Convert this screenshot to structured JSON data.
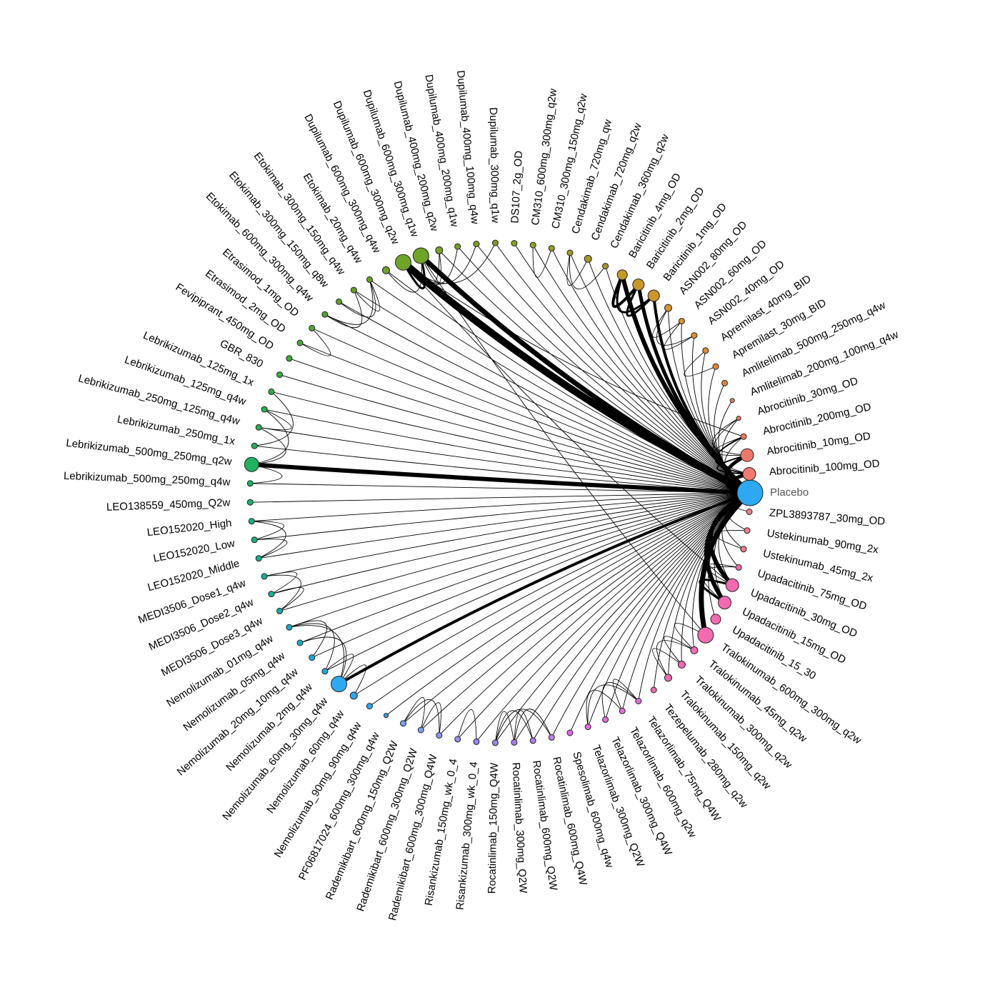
{
  "chart_data": {
    "type": "network",
    "title": "",
    "center": "Placebo",
    "nodes": [
      {
        "name": "Placebo",
        "size": 18,
        "color": "#2ea8f0"
      },
      {
        "name": "ZPL3893787_30mg_OD",
        "size": 4,
        "color": "#f07c8a"
      },
      {
        "name": "Ustekinumab_90mg_2x",
        "size": 4,
        "color": "#f07c8a"
      },
      {
        "name": "Ustekinumab_45mg_2x",
        "size": 4,
        "color": "#f07c8a"
      },
      {
        "name": "Upadacitinib_75mg_OD",
        "size": 4,
        "color": "#f26ab0"
      },
      {
        "name": "Upadacitinib_30mg_OD",
        "size": 9,
        "color": "#f26ab0"
      },
      {
        "name": "Upadacitinib_15mg_OD",
        "size": 9,
        "color": "#f26ab0"
      },
      {
        "name": "Upadacitinib_15_30",
        "size": 7,
        "color": "#f26ab0"
      },
      {
        "name": "Tralokinumab_600mg_300mg_q2w",
        "size": 11,
        "color": "#f26ab0"
      },
      {
        "name": "Tralokinumab_45mg_q2w",
        "size": 5,
        "color": "#f26ab0"
      },
      {
        "name": "Tralokinumab_300mg_q2w",
        "size": 5,
        "color": "#f26ab0"
      },
      {
        "name": "Tralokinumab_150mg_q2w",
        "size": 5,
        "color": "#f26ab0"
      },
      {
        "name": "Tezepelumab_280mg_q2w",
        "size": 4,
        "color": "#f26ab0"
      },
      {
        "name": "Telazorlimab_75mg_Q4W",
        "size": 4,
        "color": "#e66bd8"
      },
      {
        "name": "Telazorlimab_600mg_q2w",
        "size": 4,
        "color": "#e66bd8"
      },
      {
        "name": "Telazorlimab_300mg_Q4W",
        "size": 4,
        "color": "#e66bd8"
      },
      {
        "name": "Telazorlimab_300mg_Q2W",
        "size": 4,
        "color": "#e66bd8"
      },
      {
        "name": "Spesolimab_600mg_q4w",
        "size": 4,
        "color": "#d86ae8"
      },
      {
        "name": "Rocatinlimab_600mg_Q4W",
        "size": 4,
        "color": "#c37be8"
      },
      {
        "name": "Rocatinlimab_600mg_Q2W",
        "size": 4,
        "color": "#b17ce8"
      },
      {
        "name": "Rocatinlimab_300mg_Q2W",
        "size": 4,
        "color": "#a57ee8"
      },
      {
        "name": "Rocatinlimab_150mg_Q4W",
        "size": 4,
        "color": "#9e84ea"
      },
      {
        "name": "Risankizumab_300mg_wk_0_4",
        "size": 4,
        "color": "#9a88ea"
      },
      {
        "name": "Risankizumab_150mg_wk_0_4",
        "size": 4,
        "color": "#9591ec"
      },
      {
        "name": "Rademikibart_600mg_300mg_Q4W",
        "size": 4,
        "color": "#8a96ee"
      },
      {
        "name": "Rademikibart_600mg_300mg_Q2W",
        "size": 4,
        "color": "#7f9df0"
      },
      {
        "name": "Rademikibart_600mg_150mg_Q2W",
        "size": 4,
        "color": "#74a4f0"
      },
      {
        "name": "PF06817024_600mg_300mg_q4w",
        "size": 3,
        "color": "#3aa0e8"
      },
      {
        "name": "Nemolizumab_90mg_90mg_q4w",
        "size": 4,
        "color": "#2ea8f0"
      },
      {
        "name": "Nemolizumab_60mg_q4w",
        "size": 5,
        "color": "#2ea8f0"
      },
      {
        "name": "Nemolizumab_60mg_30mg_q4w",
        "size": 11,
        "color": "#2ea8f0"
      },
      {
        "name": "Nemolizumab_2mg_q4w",
        "size": 4,
        "color": "#22a9dc"
      },
      {
        "name": "Nemolizumab_20mg_10mg_q4w",
        "size": 4,
        "color": "#1eabd0"
      },
      {
        "name": "Nemolizumab_05mg_q4w",
        "size": 4,
        "color": "#1bacc4"
      },
      {
        "name": "Nemolizumab_01mg_q4w",
        "size": 4,
        "color": "#19adb8"
      },
      {
        "name": "MEDI3506_Dose3_q4w",
        "size": 4,
        "color": "#17aeac"
      },
      {
        "name": "MEDI3506_Dose2_q4w",
        "size": 4,
        "color": "#16afa0"
      },
      {
        "name": "MEDI3506_Dose1_q4w",
        "size": 4,
        "color": "#16b096"
      },
      {
        "name": "LEO152020_Middle",
        "size": 4,
        "color": "#17b08c"
      },
      {
        "name": "LEO152020_Low",
        "size": 4,
        "color": "#18b182"
      },
      {
        "name": "LEO152020_High",
        "size": 4,
        "color": "#1ab278"
      },
      {
        "name": "LEO138559_450mg_Q2w",
        "size": 4,
        "color": "#1cb270"
      },
      {
        "name": "Lebrikizumab_500mg_250mg_q4w",
        "size": 4,
        "color": "#1eb268"
      },
      {
        "name": "Lebrikizumab_500mg_250mg_q2w",
        "size": 10,
        "color": "#20b262"
      },
      {
        "name": "Lebrikizumab_250mg_1x",
        "size": 4,
        "color": "#22b25c"
      },
      {
        "name": "Lebrikizumab_250mg_125mg_q4w",
        "size": 4,
        "color": "#26b156"
      },
      {
        "name": "Lebrikizumab_125mg_q4w",
        "size": 4,
        "color": "#2ab050"
      },
      {
        "name": "Lebrikizumab_125mg_1x",
        "size": 4,
        "color": "#30ae48"
      },
      {
        "name": "GBR_830",
        "size": 4,
        "color": "#36ac42"
      },
      {
        "name": "Fevipiprant_450mg_OD",
        "size": 4,
        "color": "#3eaa3c"
      },
      {
        "name": "Etrasimod_2mg_OD",
        "size": 4,
        "color": "#46a838"
      },
      {
        "name": "Etrasimod_1mg_OD",
        "size": 4,
        "color": "#4ea634"
      },
      {
        "name": "Etokimab_600mg_300mg_q4w",
        "size": 4,
        "color": "#56a430"
      },
      {
        "name": "Etokimab_300mg_150mg_q8w",
        "size": 4,
        "color": "#5ea22c"
      },
      {
        "name": "Etokimab_300mg_150mg_q4w",
        "size": 4,
        "color": "#64a02a"
      },
      {
        "name": "Etokimab_20mg_q4w",
        "size": 4,
        "color": "#6a9e28"
      },
      {
        "name": "Dupilumab_600mg_300mg_q4w",
        "size": 5,
        "color": "#6fa028"
      },
      {
        "name": "Dupilumab_600mg_300mg_q2w",
        "size": 11,
        "color": "#6ea428"
      },
      {
        "name": "Dupilumab_600mg_300mg_q1w",
        "size": 11,
        "color": "#6ea428"
      },
      {
        "name": "Dupilumab_400mg_200mg_q2w",
        "size": 5,
        "color": "#72a228"
      },
      {
        "name": "Dupilumab_400mg_200mg_q1w",
        "size": 4,
        "color": "#76a028"
      },
      {
        "name": "Dupilumab_400mg_100mg_q4w",
        "size": 4,
        "color": "#7a9e28"
      },
      {
        "name": "Dupilumab_300mg_q1w",
        "size": 4,
        "color": "#7e9c28"
      },
      {
        "name": "DS107_2g_OD",
        "size": 4,
        "color": "#86a028"
      },
      {
        "name": "CM310_600mg_300mg_q2w",
        "size": 4,
        "color": "#8e9e28"
      },
      {
        "name": "CM310_300mg_150mg_q2w",
        "size": 4,
        "color": "#969c28"
      },
      {
        "name": "Cendakimab_720mg_qw",
        "size": 4,
        "color": "#9e9a28"
      },
      {
        "name": "Cendakimab_720mg_q2w",
        "size": 5,
        "color": "#a49828"
      },
      {
        "name": "Cendakimab_360mg_q2w",
        "size": 4,
        "color": "#aa9628"
      },
      {
        "name": "Baricitinib_4mg_OD",
        "size": 7,
        "color": "#c49a28"
      },
      {
        "name": "Baricitinib_2mg_OD",
        "size": 8,
        "color": "#c8982a"
      },
      {
        "name": "Baricitinib_1mg_OD",
        "size": 8,
        "color": "#cc962c"
      },
      {
        "name": "ASN002_80mg_OD",
        "size": 5,
        "color": "#d2942e"
      },
      {
        "name": "ASN002_60mg_OD",
        "size": 4,
        "color": "#d69230"
      },
      {
        "name": "ASN002_40mg_OD",
        "size": 4,
        "color": "#da9034"
      },
      {
        "name": "Apremilast_40mg_BID",
        "size": 4,
        "color": "#de8c3a"
      },
      {
        "name": "Apremilast_30mg_BID",
        "size": 4,
        "color": "#e2883e"
      },
      {
        "name": "Amlitelimab_500mg_250mg_q4w",
        "size": 4,
        "color": "#e88244"
      },
      {
        "name": "Amlitelimab_200mg_100mg_q4w",
        "size": 3,
        "color": "#ec7e4c"
      },
      {
        "name": "Abrocitinib_30mg_OD",
        "size": 3,
        "color": "#ee7a56"
      },
      {
        "name": "Abrocitinib_200mg_OD",
        "size": 4,
        "color": "#f07860"
      },
      {
        "name": "Abrocitinib_10mg_OD",
        "size": 9,
        "color": "#f07868"
      },
      {
        "name": "Abrocitinib_100mg_OD",
        "size": 9,
        "color": "#f07a72"
      }
    ],
    "edges": [
      {
        "a": "Placebo",
        "b": "Dupilumab_600mg_300mg_q2w",
        "w": 10
      },
      {
        "a": "Placebo",
        "b": "Dupilumab_600mg_300mg_q1w",
        "w": 7
      },
      {
        "a": "Placebo",
        "b": "Lebrikizumab_500mg_250mg_q2w",
        "w": 6
      },
      {
        "a": "Placebo",
        "b": "Baricitinib_4mg_OD",
        "w": 6
      },
      {
        "a": "Placebo",
        "b": "Baricitinib_2mg_OD",
        "w": 5
      },
      {
        "a": "Placebo",
        "b": "Baricitinib_1mg_OD",
        "w": 4
      },
      {
        "a": "Placebo",
        "b": "Tralokinumab_600mg_300mg_q2w",
        "w": 7
      },
      {
        "a": "Placebo",
        "b": "Upadacitinib_30mg_OD",
        "w": 6
      },
      {
        "a": "Placebo",
        "b": "Upadacitinib_15mg_OD",
        "w": 6
      },
      {
        "a": "Placebo",
        "b": "Abrocitinib_10mg_OD",
        "w": 5
      },
      {
        "a": "Placebo",
        "b": "Abrocitinib_100mg_OD",
        "w": 5
      },
      {
        "a": "Placebo",
        "b": "Nemolizumab_60mg_30mg_q4w",
        "w": 4
      },
      {
        "a": "Dupilumab_600mg_300mg_q2w",
        "b": "Dupilumab_600mg_300mg_q1w",
        "w": 3
      },
      {
        "a": "Baricitinib_4mg_OD",
        "b": "Baricitinib_2mg_OD",
        "w": 4
      },
      {
        "a": "Baricitinib_2mg_OD",
        "b": "Baricitinib_1mg_OD",
        "w": 3
      },
      {
        "a": "Baricitinib_4mg_OD",
        "b": "Baricitinib_1mg_OD",
        "w": 3
      },
      {
        "a": "Upadacitinib_30mg_OD",
        "b": "Upadacitinib_15mg_OD",
        "w": 3
      },
      {
        "a": "Abrocitinib_10mg_OD",
        "b": "Abrocitinib_100mg_OD",
        "w": 2
      },
      {
        "a": "Abrocitinib_200mg_OD",
        "b": "Abrocitinib_100mg_OD",
        "w": 2
      }
    ],
    "thin_links": [
      [
        "Dupilumab_600mg_300mg_q2w",
        "Dupilumab_400mg_200mg_q2w"
      ],
      [
        "Dupilumab_600mg_300mg_q2w",
        "Dupilumab_400mg_200mg_q1w"
      ],
      [
        "Dupilumab_600mg_300mg_q2w",
        "Dupilumab_400mg_100mg_q4w"
      ],
      [
        "Dupilumab_600mg_300mg_q2w",
        "Dupilumab_300mg_q1w"
      ],
      [
        "Dupilumab_600mg_300mg_q1w",
        "Dupilumab_600mg_300mg_q4w"
      ],
      [
        "Dupilumab_600mg_300mg_q1w",
        "Dupilumab_400mg_200mg_q2w"
      ],
      [
        "Etokimab_300mg_150mg_q4w",
        "Etokimab_20mg_q4w"
      ],
      [
        "Etokimab_300mg_150mg_q8w",
        "Etokimab_20mg_q4w"
      ],
      [
        "Etokimab_600mg_300mg_q4w",
        "Etokimab_20mg_q4w"
      ],
      [
        "Etokimab_600mg_300mg_q4w",
        "Etokimab_300mg_150mg_q4w"
      ],
      [
        "CM310_600mg_300mg_q2w",
        "CM310_300mg_150mg_q2w"
      ],
      [
        "Cendakimab_720mg_qw",
        "Cendakimab_720mg_q2w"
      ],
      [
        "Cendakimab_720mg_qw",
        "Cendakimab_360mg_q2w"
      ],
      [
        "ASN002_80mg_OD",
        "ASN002_60mg_OD"
      ],
      [
        "ASN002_80mg_OD",
        "ASN002_40mg_OD"
      ],
      [
        "ASN002_60mg_OD",
        "ASN002_40mg_OD"
      ],
      [
        "Apremilast_40mg_BID",
        "Apremilast_30mg_BID"
      ],
      [
        "Abrocitinib_30mg_OD",
        "Abrocitinib_10mg_OD"
      ],
      [
        "Abrocitinib_200mg_OD",
        "Abrocitinib_10mg_OD"
      ],
      [
        "Abrocitinib_30mg_OD",
        "Abrocitinib_100mg_OD"
      ],
      [
        "Ustekinumab_90mg_2x",
        "Ustekinumab_45mg_2x"
      ],
      [
        "Upadacitinib_75mg_OD",
        "Upadacitinib_30mg_OD"
      ],
      [
        "Upadacitinib_75mg_OD",
        "Upadacitinib_15mg_OD"
      ],
      [
        "Tralokinumab_45mg_q2w",
        "Tralokinumab_300mg_q2w"
      ],
      [
        "Tralokinumab_45mg_q2w",
        "Tralokinumab_150mg_q2w"
      ],
      [
        "Tralokinumab_300mg_q2w",
        "Tralokinumab_150mg_q2w"
      ],
      [
        "Tralokinumab_45mg_q2w",
        "Tralokinumab_600mg_300mg_q2w"
      ],
      [
        "Telazorlimab_75mg_Q4W",
        "Telazorlimab_600mg_q2w"
      ],
      [
        "Telazorlimab_75mg_Q4W",
        "Telazorlimab_300mg_Q4W"
      ],
      [
        "Telazorlimab_75mg_Q4W",
        "Telazorlimab_300mg_Q2W"
      ],
      [
        "Telazorlimab_600mg_q2w",
        "Telazorlimab_300mg_Q2W"
      ],
      [
        "Rocatinlimab_600mg_Q4W",
        "Rocatinlimab_150mg_Q4W"
      ],
      [
        "Rocatinlimab_600mg_Q2W",
        "Rocatinlimab_150mg_Q4W"
      ],
      [
        "Rocatinlimab_300mg_Q2W",
        "Rocatinlimab_150mg_Q4W"
      ],
      [
        "Rocatinlimab_600mg_Q4W",
        "Rocatinlimab_300mg_Q2W"
      ],
      [
        "Rocatinlimab_600mg_Q2W",
        "Rocatinlimab_300mg_Q2W"
      ],
      [
        "Risankizumab_300mg_wk_0_4",
        "Risankizumab_150mg_wk_0_4"
      ],
      [
        "Rademikibart_600mg_300mg_Q4W",
        "Rademikibart_600mg_300mg_Q2W"
      ],
      [
        "Rademikibart_600mg_300mg_Q4W",
        "Rademikibart_600mg_150mg_Q2W"
      ],
      [
        "Rademikibart_600mg_300mg_Q2W",
        "Rademikibart_600mg_150mg_Q2W"
      ],
      [
        "Nemolizumab_60mg_30mg_q4w",
        "Nemolizumab_60mg_q4w"
      ],
      [
        "Nemolizumab_60mg_30mg_q4w",
        "Nemolizumab_2mg_q4w"
      ],
      [
        "Nemolizumab_60mg_30mg_q4w",
        "Nemolizumab_05mg_q4w"
      ],
      [
        "Nemolizumab_60mg_30mg_q4w",
        "Nemolizumab_01mg_q4w"
      ],
      [
        "Nemolizumab_20mg_10mg_q4w",
        "Nemolizumab_01mg_q4w"
      ],
      [
        "Nemolizumab_2mg_q4w",
        "Nemolizumab_01mg_q4w"
      ],
      [
        "MEDI3506_Dose3_q4w",
        "MEDI3506_Dose1_q4w"
      ],
      [
        "MEDI3506_Dose2_q4w",
        "MEDI3506_Dose1_q4w"
      ],
      [
        "MEDI3506_Dose3_q4w",
        "MEDI3506_Dose2_q4w"
      ],
      [
        "LEO152020_High",
        "LEO152020_Middle"
      ],
      [
        "LEO152020_High",
        "LEO152020_Low"
      ],
      [
        "LEO152020_Low",
        "LEO152020_Middle"
      ],
      [
        "Lebrikizumab_500mg_250mg_q2w",
        "Lebrikizumab_500mg_250mg_q4w"
      ],
      [
        "Lebrikizumab_500mg_250mg_q2w",
        "Lebrikizumab_250mg_125mg_q4w"
      ],
      [
        "Lebrikizumab_500mg_250mg_q2w",
        "Lebrikizumab_125mg_q4w"
      ],
      [
        "Lebrikizumab_250mg_1x",
        "Lebrikizumab_125mg_1x"
      ],
      [
        "Lebrikizumab_250mg_125mg_q4w",
        "Lebrikizumab_125mg_q4w"
      ],
      [
        "Etrasimod_2mg_OD",
        "Etrasimod_1mg_OD"
      ],
      [
        "Dupilumab_600mg_300mg_q1w",
        "Tralokinumab_600mg_300mg_q2w"
      ],
      [
        "Dupilumab_600mg_300mg_q2w",
        "Abrocitinib_200mg_OD"
      ],
      [
        "Dupilumab_600mg_300mg_q2w",
        "Upadacitinib_30mg_OD"
      ]
    ]
  }
}
